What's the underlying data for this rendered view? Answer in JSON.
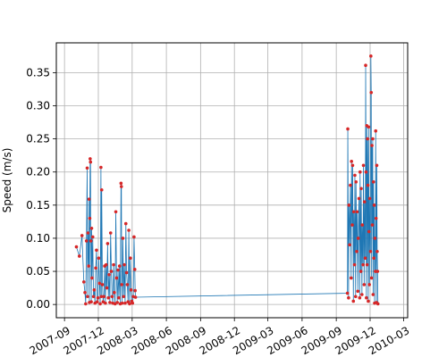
{
  "chart_data": {
    "type": "scatter",
    "title": "",
    "xlabel": "",
    "ylabel": "Speed (m/s)",
    "xlim": [
      "2007-08-10",
      "2010-03-12"
    ],
    "ylim": [
      -0.02,
      0.395
    ],
    "grid": true,
    "x_ticks": [
      "2007-09",
      "2007-12",
      "2008-03",
      "2008-06",
      "2008-09",
      "2008-12",
      "2009-03",
      "2009-06",
      "2009-09",
      "2009-12",
      "2010-03"
    ],
    "y_ticks": [
      "0.00",
      "0.05",
      "0.10",
      "0.15",
      "0.20",
      "0.25",
      "0.30",
      "0.35"
    ],
    "line_color": "#1f77b4",
    "marker_color": "#d62728",
    "series": [
      {
        "points": [
          [
            "2007-10-03",
            0.087
          ],
          [
            "2007-10-11",
            0.073
          ],
          [
            "2007-10-18",
            0.104
          ],
          [
            "2007-10-23",
            0.034
          ],
          [
            "2007-10-26",
            0.018
          ],
          [
            "2007-10-28",
            0.001
          ],
          [
            "2007-10-30",
            0.096
          ],
          [
            "2007-11-01",
            0.206
          ],
          [
            "2007-11-02",
            0.012
          ],
          [
            "2007-11-03",
            0.108
          ],
          [
            "2007-11-05",
            0.058
          ],
          [
            "2007-11-06",
            0.159
          ],
          [
            "2007-11-07",
            0.003
          ],
          [
            "2007-11-08",
            0.13
          ],
          [
            "2007-11-09",
            0.22
          ],
          [
            "2007-11-10",
            0.215
          ],
          [
            "2007-11-11",
            0.096
          ],
          [
            "2007-11-12",
            0.004
          ],
          [
            "2007-11-13",
            0.115
          ],
          [
            "2007-11-14",
            0.04
          ],
          [
            "2007-11-16",
            0.102
          ],
          [
            "2007-11-18",
            0.012
          ],
          [
            "2007-11-20",
            0.022
          ],
          [
            "2007-11-22",
            0.002
          ],
          [
            "2007-11-24",
            0.055
          ],
          [
            "2007-11-26",
            0.082
          ],
          [
            "2007-11-28",
            0.004
          ],
          [
            "2007-11-30",
            0.01
          ],
          [
            "2007-12-02",
            0.07
          ],
          [
            "2007-12-04",
            0.032
          ],
          [
            "2007-12-06",
            0.001
          ],
          [
            "2007-12-08",
            0.207
          ],
          [
            "2007-12-09",
            0.012
          ],
          [
            "2007-12-10",
            0.173
          ],
          [
            "2007-12-12",
            0.03
          ],
          [
            "2007-12-14",
            0.004
          ],
          [
            "2007-12-16",
            0.012
          ],
          [
            "2007-12-18",
            0.058
          ],
          [
            "2007-12-20",
            0.002
          ],
          [
            "2007-12-22",
            0.06
          ],
          [
            "2007-12-24",
            0.025
          ],
          [
            "2007-12-26",
            0.092
          ],
          [
            "2007-12-28",
            0.01
          ],
          [
            "2007-12-30",
            0.045
          ],
          [
            "2008-01-01",
            0.003
          ],
          [
            "2008-01-03",
            0.108
          ],
          [
            "2008-01-05",
            0.05
          ],
          [
            "2008-01-07",
            0.012
          ],
          [
            "2008-01-09",
            0.002
          ],
          [
            "2008-01-11",
            0.06
          ],
          [
            "2008-01-13",
            0.018
          ],
          [
            "2008-01-15",
            0.001
          ],
          [
            "2008-01-17",
            0.14
          ],
          [
            "2008-01-19",
            0.04
          ],
          [
            "2008-01-21",
            0.003
          ],
          [
            "2008-01-23",
            0.052
          ],
          [
            "2008-01-25",
            0.01
          ],
          [
            "2008-01-27",
            0.058
          ],
          [
            "2008-01-29",
            0.001
          ],
          [
            "2008-01-31",
            0.183
          ],
          [
            "2008-02-01",
            0.178
          ],
          [
            "2008-02-02",
            0.03
          ],
          [
            "2008-02-03",
            0.002
          ],
          [
            "2008-02-05",
            0.1
          ],
          [
            "2008-02-07",
            0.012
          ],
          [
            "2008-02-09",
            0.06
          ],
          [
            "2008-02-11",
            0.002
          ],
          [
            "2008-02-13",
            0.122
          ],
          [
            "2008-02-15",
            0.048
          ],
          [
            "2008-02-17",
            0.03
          ],
          [
            "2008-02-19",
            0.004
          ],
          [
            "2008-02-21",
            0.112
          ],
          [
            "2008-02-23",
            0.001
          ],
          [
            "2008-02-25",
            0.07
          ],
          [
            "2008-02-27",
            0.022
          ],
          [
            "2008-02-29",
            0.005
          ],
          [
            "2008-03-02",
            0.002
          ],
          [
            "2008-03-04",
            0.012
          ],
          [
            "2008-03-06",
            0.102
          ],
          [
            "2008-03-08",
            0.053
          ],
          [
            "2008-03-09",
            0.021
          ],
          [
            "2008-03-10",
            0.011
          ],
          [
            "2009-10-01",
            0.017
          ],
          [
            "2009-10-02",
            0.265
          ],
          [
            "2009-10-04",
            0.01
          ],
          [
            "2009-10-05",
            0.15
          ],
          [
            "2009-10-07",
            0.09
          ],
          [
            "2009-10-09",
            0.18
          ],
          [
            "2009-10-11",
            0.04
          ],
          [
            "2009-10-12",
            0.216
          ],
          [
            "2009-10-14",
            0.12
          ],
          [
            "2009-10-15",
            0.21
          ],
          [
            "2009-10-17",
            0.005
          ],
          [
            "2009-10-18",
            0.14
          ],
          [
            "2009-10-20",
            0.06
          ],
          [
            "2009-10-21",
            0.195
          ],
          [
            "2009-10-23",
            0.012
          ],
          [
            "2009-10-24",
            0.185
          ],
          [
            "2009-10-26",
            0.08
          ],
          [
            "2009-10-27",
            0.14
          ],
          [
            "2009-10-29",
            0.02
          ],
          [
            "2009-10-30",
            0.1
          ],
          [
            "2009-11-01",
            0.16
          ],
          [
            "2009-11-03",
            0.01
          ],
          [
            "2009-11-04",
            0.2
          ],
          [
            "2009-11-06",
            0.05
          ],
          [
            "2009-11-07",
            0.175
          ],
          [
            "2009-11-09",
            0.015
          ],
          [
            "2009-11-10",
            0.12
          ],
          [
            "2009-11-12",
            0.06
          ],
          [
            "2009-11-13",
            0.21
          ],
          [
            "2009-11-15",
            0.03
          ],
          [
            "2009-11-16",
            0.155
          ],
          [
            "2009-11-18",
            0.07
          ],
          [
            "2009-11-19",
            0.361
          ],
          [
            "2009-11-20",
            0.2
          ],
          [
            "2009-11-21",
            0.01
          ],
          [
            "2009-11-22",
            0.27
          ],
          [
            "2009-11-23",
            0.06
          ],
          [
            "2009-11-24",
            0.25
          ],
          [
            "2009-11-25",
            0.18
          ],
          [
            "2009-11-26",
            0.005
          ],
          [
            "2009-11-27",
            0.268
          ],
          [
            "2009-11-28",
            0.11
          ],
          [
            "2009-11-29",
            0.03
          ],
          [
            "2009-11-30",
            0.16
          ],
          [
            "2009-12-02",
            0.08
          ],
          [
            "2009-12-03",
            0.375
          ],
          [
            "2009-12-04",
            0.32
          ],
          [
            "2009-12-05",
            0.04
          ],
          [
            "2009-12-06",
            0.24
          ],
          [
            "2009-12-07",
            0.12
          ],
          [
            "2009-12-08",
            0.25
          ],
          [
            "2009-12-09",
            0.015
          ],
          [
            "2009-12-10",
            0.185
          ],
          [
            "2009-12-11",
            0.07
          ],
          [
            "2009-12-12",
            0.15
          ],
          [
            "2009-12-13",
            0.002
          ],
          [
            "2009-12-14",
            0.1
          ],
          [
            "2009-12-15",
            0.05
          ],
          [
            "2009-12-16",
            0.262
          ],
          [
            "2009-12-17",
            0.13
          ],
          [
            "2009-12-18",
            0.003
          ],
          [
            "2009-12-19",
            0.21
          ],
          [
            "2009-12-20",
            0.08
          ],
          [
            "2009-12-21",
            0.05
          ],
          [
            "2009-12-22",
            0.001
          ]
        ]
      }
    ]
  }
}
